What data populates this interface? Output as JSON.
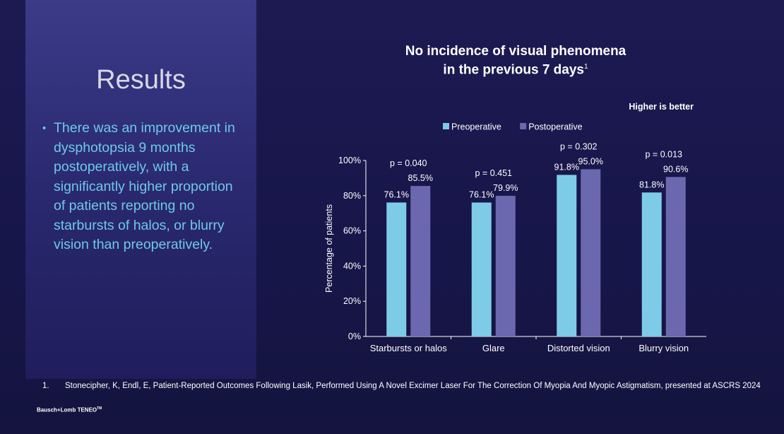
{
  "left": {
    "title": "Results",
    "bullet_symbol": "•",
    "bullet": "There was an improvement in dysphotopsia 9 months postoperatively, with a significantly higher proportion of patients reporting no starbursts of halos, or blurry vision than preoperatively."
  },
  "chart_header": {
    "line1": "No incidence of visual phenomena",
    "line2": "in the previous 7 days",
    "superscript": "1",
    "note": "Higher is better"
  },
  "footnote": {
    "number": "1.",
    "text": "Stonecipher, K, Endl, E, Patient-Reported Outcomes Following Lasik, Performed Using A Novel Excimer Laser For The Correction Of Myopia And Myopic Astigmatism, presented at ASCRS 2024"
  },
  "brand": {
    "name": "Bausch+Lomb TENEO",
    "tm": "TM"
  },
  "colors": {
    "preoperative": "#7ecbe8",
    "postoperative": "#6b68b0",
    "text": "#ffffff",
    "bullet": "#6fc9e8"
  },
  "chart_data": {
    "type": "bar",
    "title": "No incidence of visual phenomena in the previous 7 days",
    "categories": [
      "Starbursts or halos",
      "Glare",
      "Distorted vision",
      "Blurry vision"
    ],
    "series": [
      {
        "name": "Preoperative",
        "values": [
          76.1,
          76.1,
          91.8,
          81.8
        ],
        "labels": [
          "76.1%",
          "76.1%",
          "91.8%",
          "81.8%"
        ]
      },
      {
        "name": "Postoperative",
        "values": [
          85.5,
          79.9,
          95.0,
          90.6
        ],
        "labels": [
          "85.5%",
          "79.9%",
          "95.0%",
          "90.6%"
        ]
      }
    ],
    "p_values": [
      "p = 0.040",
      "p = 0.451",
      "p = 0.302",
      "p = 0.013"
    ],
    "ylabel": "Percentage of patients",
    "xlabel": "",
    "ylim": [
      0,
      100
    ],
    "yticks": [
      0,
      20,
      40,
      60,
      80,
      100
    ],
    "ytick_labels": [
      "0%",
      "20%",
      "40%",
      "60%",
      "80%",
      "100%"
    ],
    "legend_position": "top-center",
    "grid": false
  }
}
